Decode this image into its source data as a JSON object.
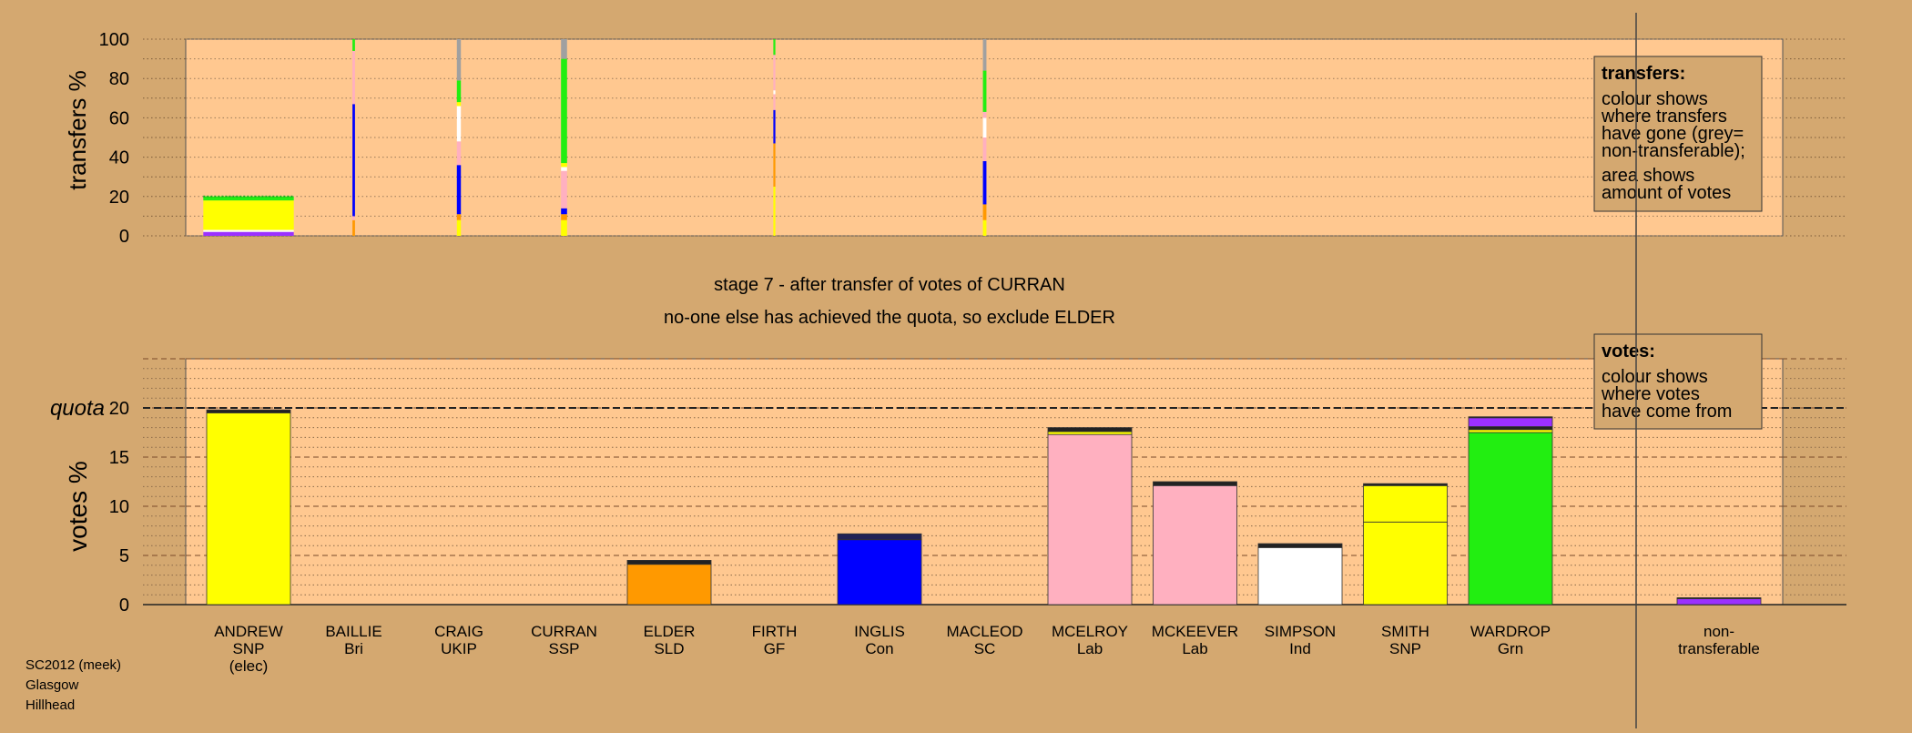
{
  "colors": {
    "background": "#d4a870",
    "panel": "#ffc890",
    "legend_bg": "#d4a870",
    "ANDREW": "#ffff00",
    "BAILLIE": "#ffc0cb",
    "CRAIG": "#9b30ff",
    "CURRAN": "#ff1493",
    "ELDER": "#ff9900",
    "FIRTH": "#00cc00",
    "INGLIS": "#0000ff",
    "MACLEOD": "#ff66cc",
    "MCELROY": "#ffb0c0",
    "MCKEEVER": "#ffb0c0",
    "SIMPSON": "#ffffff",
    "SMITH": "#ffff00",
    "WARDROP": "#22ee11",
    "nontransferable": "#a0a0a0",
    "dark": "#222222"
  },
  "stage_title": "stage 7 - after transfer of votes of CURRAN",
  "stage_subtitle": "no-one else has achieved the quota, so exclude ELDER",
  "footer": {
    "line1": "SC2012 (meek)",
    "line2": "Glasgow",
    "line3": "Hillhead"
  },
  "chart_data": [
    {
      "type": "bar",
      "name": "transfers",
      "ylabel": "transfers %",
      "ylim": [
        0,
        100
      ],
      "yticks": [
        0,
        20,
        40,
        60,
        80,
        100
      ],
      "grid": true,
      "legend": {
        "position": "top-right",
        "title": "transfers:",
        "lines1": [
          "colour shows",
          "where transfers",
          "have gone (grey=",
          "non-transferable);"
        ],
        "lines2": [
          "area shows",
          "amount of votes"
        ]
      },
      "bars": [
        {
          "candidate": "ANDREW",
          "width_share": 0.9,
          "segments": [
            {
              "color": "#9b30ff",
              "from": 0,
              "to": 2
            },
            {
              "color": "#ffffff",
              "from": 2,
              "to": 3
            },
            {
              "color": "#ffff00",
              "from": 3,
              "to": 18
            },
            {
              "color": "#22ee11",
              "from": 18,
              "to": 20
            }
          ]
        },
        {
          "candidate": "BAILLIE",
          "width_share": 0.025,
          "segments": [
            {
              "color": "#ff9900",
              "from": 0,
              "to": 8
            },
            {
              "color": "#ffb0c0",
              "from": 8,
              "to": 10
            },
            {
              "color": "#0000ff",
              "from": 10,
              "to": 67
            },
            {
              "color": "#ffb0c0",
              "from": 67,
              "to": 94
            },
            {
              "color": "#22ee11",
              "from": 94,
              "to": 100
            }
          ]
        },
        {
          "candidate": "CRAIG",
          "width_share": 0.04,
          "segments": [
            {
              "color": "#ffff00",
              "from": 0,
              "to": 8
            },
            {
              "color": "#ff9900",
              "from": 8,
              "to": 11
            },
            {
              "color": "#0000ff",
              "from": 11,
              "to": 36
            },
            {
              "color": "#ffb0c0",
              "from": 36,
              "to": 48
            },
            {
              "color": "#ffffff",
              "from": 48,
              "to": 66
            },
            {
              "color": "#ffff00",
              "from": 66,
              "to": 68
            },
            {
              "color": "#22ee11",
              "from": 68,
              "to": 79
            },
            {
              "color": "#a0a0a0",
              "from": 79,
              "to": 100
            }
          ]
        },
        {
          "candidate": "CURRAN",
          "width_share": 0.06,
          "segments": [
            {
              "color": "#ffff00",
              "from": 0,
              "to": 8
            },
            {
              "color": "#ff9900",
              "from": 8,
              "to": 11
            },
            {
              "color": "#0000ff",
              "from": 11,
              "to": 14
            },
            {
              "color": "#ffb0c0",
              "from": 14,
              "to": 33
            },
            {
              "color": "#ffffff",
              "from": 33,
              "to": 35
            },
            {
              "color": "#ffff00",
              "from": 35,
              "to": 37
            },
            {
              "color": "#22ee11",
              "from": 37,
              "to": 90
            },
            {
              "color": "#a0a0a0",
              "from": 90,
              "to": 100
            }
          ]
        },
        {
          "candidate": "FIRTH",
          "width_share": 0.02,
          "segments": [
            {
              "color": "#ffff00",
              "from": 0,
              "to": 25
            },
            {
              "color": "#ff9900",
              "from": 25,
              "to": 47
            },
            {
              "color": "#0000ff",
              "from": 47,
              "to": 64
            },
            {
              "color": "#ffb0c0",
              "from": 64,
              "to": 72
            },
            {
              "color": "#ffffff",
              "from": 72,
              "to": 74
            },
            {
              "color": "#ffb0c0",
              "from": 74,
              "to": 92
            },
            {
              "color": "#22ee11",
              "from": 92,
              "to": 100
            }
          ]
        },
        {
          "candidate": "MACLEOD",
          "width_share": 0.035,
          "segments": [
            {
              "color": "#ffff00",
              "from": 0,
              "to": 8
            },
            {
              "color": "#ff9900",
              "from": 8,
              "to": 16
            },
            {
              "color": "#0000ff",
              "from": 16,
              "to": 38
            },
            {
              "color": "#ffb0c0",
              "from": 38,
              "to": 50
            },
            {
              "color": "#ffffff",
              "from": 50,
              "to": 60
            },
            {
              "color": "#ffb0c0",
              "from": 60,
              "to": 63
            },
            {
              "color": "#22ee11",
              "from": 63,
              "to": 84
            },
            {
              "color": "#a0a0a0",
              "from": 84,
              "to": 100
            }
          ]
        }
      ]
    },
    {
      "type": "bar",
      "name": "votes",
      "ylabel": "votes %",
      "ylim": [
        0,
        25
      ],
      "yticks": [
        0,
        5,
        10,
        15,
        20
      ],
      "quota": 20,
      "quota_label": "quota",
      "grid": true,
      "legend": {
        "position": "top-right",
        "title": "votes:",
        "lines1": [
          "colour shows",
          "where votes",
          "have come from"
        ]
      },
      "categories": [
        {
          "name": "ANDREW",
          "party": "SNP",
          "note": "(elec)"
        },
        {
          "name": "BAILLIE",
          "party": "Bri"
        },
        {
          "name": "CRAIG",
          "party": "UKIP"
        },
        {
          "name": "CURRAN",
          "party": "SSP"
        },
        {
          "name": "ELDER",
          "party": "SLD"
        },
        {
          "name": "FIRTH",
          "party": "GF"
        },
        {
          "name": "INGLIS",
          "party": "Con"
        },
        {
          "name": "MACLEOD",
          "party": "SC"
        },
        {
          "name": "MCELROY",
          "party": "Lab"
        },
        {
          "name": "MCKEEVER",
          "party": "Lab"
        },
        {
          "name": "SIMPSON",
          "party": "Ind"
        },
        {
          "name": "SMITH",
          "party": "SNP"
        },
        {
          "name": "WARDROP",
          "party": "Grn"
        }
      ],
      "nontransferable_label": [
        "non-",
        "transferable"
      ],
      "bars": [
        {
          "candidate": "ANDREW",
          "segments": [
            {
              "color": "#ffff00",
              "value": 19.5
            },
            {
              "color": "#222222",
              "value": 0.3
            }
          ]
        },
        {
          "candidate": "ELDER",
          "segments": [
            {
              "color": "#ff9900",
              "value": 4.1
            },
            {
              "color": "#222222",
              "value": 0.4
            }
          ]
        },
        {
          "candidate": "INGLIS",
          "segments": [
            {
              "color": "#0000ff",
              "value": 6.6
            },
            {
              "color": "#222255",
              "value": 0.6
            }
          ]
        },
        {
          "candidate": "MCELROY",
          "segments": [
            {
              "color": "#ffb0c0",
              "value": 17.3
            },
            {
              "color": "#ffff00",
              "value": 0.3
            },
            {
              "color": "#222222",
              "value": 0.4
            }
          ]
        },
        {
          "candidate": "MCKEEVER",
          "segments": [
            {
              "color": "#ffb0c0",
              "value": 12.1
            },
            {
              "color": "#222222",
              "value": 0.4
            }
          ]
        },
        {
          "candidate": "SIMPSON",
          "segments": [
            {
              "color": "#ffffff",
              "value": 5.8
            },
            {
              "color": "#222222",
              "value": 0.4
            }
          ]
        },
        {
          "candidate": "SMITH",
          "segments": [
            {
              "color": "#ffff00",
              "value": 8.4
            },
            {
              "color": "#ffff00",
              "value": 3.7
            },
            {
              "color": "#222222",
              "value": 0.2
            }
          ]
        },
        {
          "candidate": "WARDROP",
          "segments": [
            {
              "color": "#22ee11",
              "value": 17.5
            },
            {
              "color": "#ffff00",
              "value": 0.3
            },
            {
              "color": "#222222",
              "value": 0.3
            },
            {
              "color": "#9b30ff",
              "value": 0.9
            },
            {
              "color": "#222222",
              "value": 0.1
            }
          ]
        },
        {
          "candidate": "nontransferable",
          "segments": [
            {
              "color": "#9b30ff",
              "value": 0.6
            },
            {
              "color": "#222222",
              "value": 0.1
            }
          ]
        }
      ]
    }
  ]
}
